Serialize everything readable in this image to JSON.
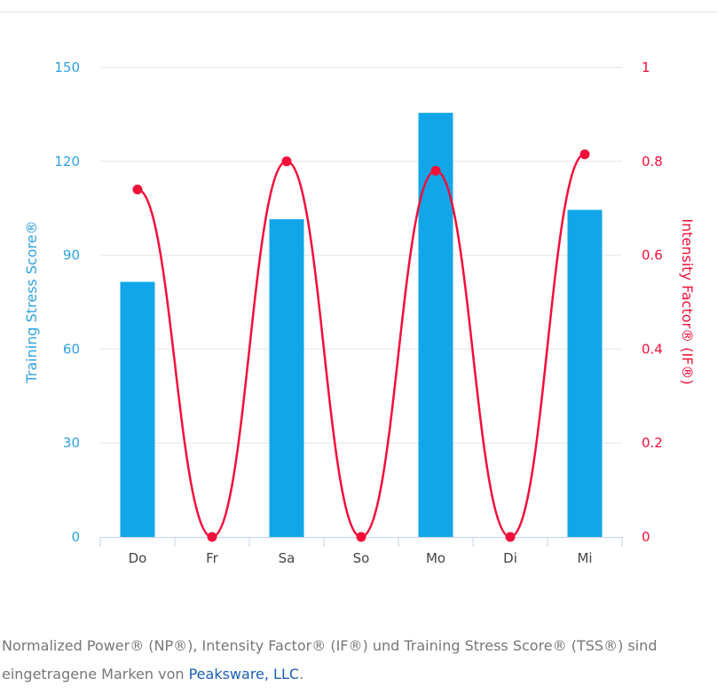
{
  "chart_data": {
    "type": "bar+line",
    "categories": [
      "Do",
      "Fr",
      "Sa",
      "So",
      "Mo",
      "Di",
      "Mi"
    ],
    "series": [
      {
        "name": "Training Stress Score®",
        "type": "bar",
        "axis": "left",
        "color": "#12a6e9",
        "values": [
          81.5,
          0,
          101.5,
          0,
          135.5,
          0,
          104.5
        ]
      },
      {
        "name": "Intensity Factor® (IF®)",
        "type": "spline",
        "axis": "right",
        "color": "#f20f3a",
        "values": [
          0.74,
          0,
          0.8,
          0,
          0.78,
          0,
          0.815
        ]
      }
    ],
    "ylabel": "Training Stress Score®",
    "y2label": "Intensity Factor® (IF®)",
    "ylim": [
      0,
      150
    ],
    "y2lim": [
      0,
      1
    ],
    "yticks": [
      "0",
      "30",
      "60",
      "90",
      "120",
      "150"
    ],
    "y2ticks": [
      "0",
      "0.2",
      "0.4",
      "0.6",
      "0.8",
      "1"
    ],
    "grid": true
  },
  "footnote": {
    "text": "Normalized Power® (NP®), Intensity Factor® (IF®) und Training Stress Score® (TSS®) sind eingetragene Marken von ",
    "link": "Peaksware, LLC",
    "end": "."
  }
}
